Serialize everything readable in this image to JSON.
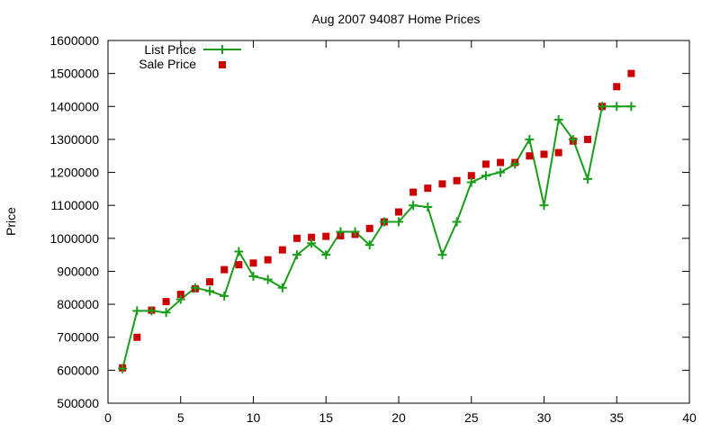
{
  "chart_data": {
    "type": "line",
    "title": "Aug 2007 94087 Home Prices",
    "xlabel": "",
    "ylabel": "Price",
    "xlim": [
      0,
      40
    ],
    "ylim": [
      500000,
      1600000
    ],
    "x_ticks": [
      0,
      5,
      10,
      15,
      20,
      25,
      30,
      35,
      40
    ],
    "y_ticks": [
      500000,
      600000,
      700000,
      800000,
      900000,
      1000000,
      1100000,
      1200000,
      1300000,
      1400000,
      1500000,
      1600000
    ],
    "grid": false,
    "legend": "top-left",
    "series": [
      {
        "name": "List Price",
        "style": "line-with-plus-markers",
        "color": "#1a9e1a",
        "points": [
          [
            1,
            605000
          ],
          [
            2,
            780000
          ],
          [
            3,
            780000
          ],
          [
            4,
            775000
          ],
          [
            5,
            815000
          ],
          [
            6,
            850000
          ],
          [
            7,
            840000
          ],
          [
            8,
            825000
          ],
          [
            9,
            960000
          ],
          [
            10,
            885000
          ],
          [
            11,
            875000
          ],
          [
            12,
            850000
          ],
          [
            13,
            950000
          ],
          [
            14,
            985000
          ],
          [
            15,
            950000
          ],
          [
            16,
            1020000
          ],
          [
            17,
            1020000
          ],
          [
            18,
            980000
          ],
          [
            19,
            1050000
          ],
          [
            20,
            1050000
          ],
          [
            21,
            1100000
          ],
          [
            22,
            1095000
          ],
          [
            23,
            950000
          ],
          [
            24,
            1050000
          ],
          [
            25,
            1170000
          ],
          [
            26,
            1190000
          ],
          [
            27,
            1200000
          ],
          [
            28,
            1225000
          ],
          [
            29,
            1300000
          ],
          [
            30,
            1100000
          ],
          [
            31,
            1360000
          ],
          [
            32,
            1300000
          ],
          [
            33,
            1180000
          ],
          [
            34,
            1400000
          ],
          [
            35,
            1400000
          ],
          [
            36,
            1400000
          ]
        ]
      },
      {
        "name": "Sale Price",
        "style": "square-markers",
        "color": "#cc0000",
        "points": [
          [
            1,
            607000
          ],
          [
            2,
            700000
          ],
          [
            3,
            782000
          ],
          [
            4,
            808000
          ],
          [
            5,
            830000
          ],
          [
            6,
            847000
          ],
          [
            7,
            868000
          ],
          [
            8,
            905000
          ],
          [
            9,
            920000
          ],
          [
            10,
            925000
          ],
          [
            11,
            935000
          ],
          [
            12,
            965000
          ],
          [
            13,
            1000000
          ],
          [
            14,
            1003000
          ],
          [
            15,
            1006000
          ],
          [
            16,
            1008000
          ],
          [
            17,
            1012000
          ],
          [
            18,
            1030000
          ],
          [
            19,
            1050000
          ],
          [
            20,
            1080000
          ],
          [
            21,
            1140000
          ],
          [
            22,
            1152000
          ],
          [
            23,
            1165000
          ],
          [
            24,
            1175000
          ],
          [
            25,
            1190000
          ],
          [
            26,
            1225000
          ],
          [
            27,
            1230000
          ],
          [
            28,
            1230000
          ],
          [
            29,
            1250000
          ],
          [
            30,
            1255000
          ],
          [
            31,
            1260000
          ],
          [
            32,
            1295000
          ],
          [
            33,
            1300000
          ],
          [
            34,
            1400000
          ],
          [
            35,
            1460000
          ],
          [
            36,
            1500000
          ]
        ]
      }
    ]
  }
}
